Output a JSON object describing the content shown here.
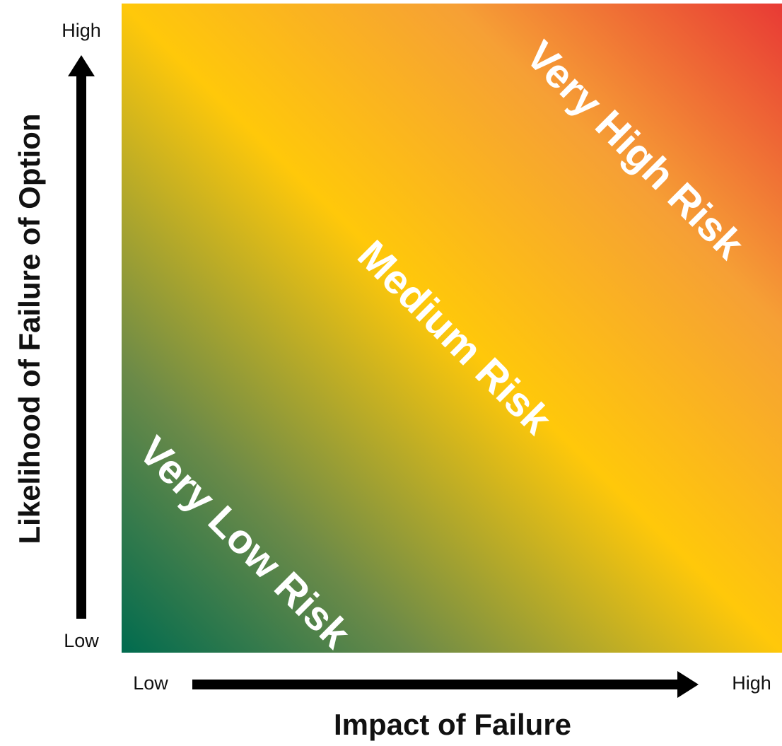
{
  "y_axis": {
    "label": "Likelihood of Failure of Option",
    "high": "High",
    "low": "Low"
  },
  "x_axis": {
    "label": "Impact of Failure",
    "low": "Low",
    "high": "High"
  },
  "zones": [
    "Very High Risk",
    "Medium Risk",
    "Very Low Risk"
  ]
}
